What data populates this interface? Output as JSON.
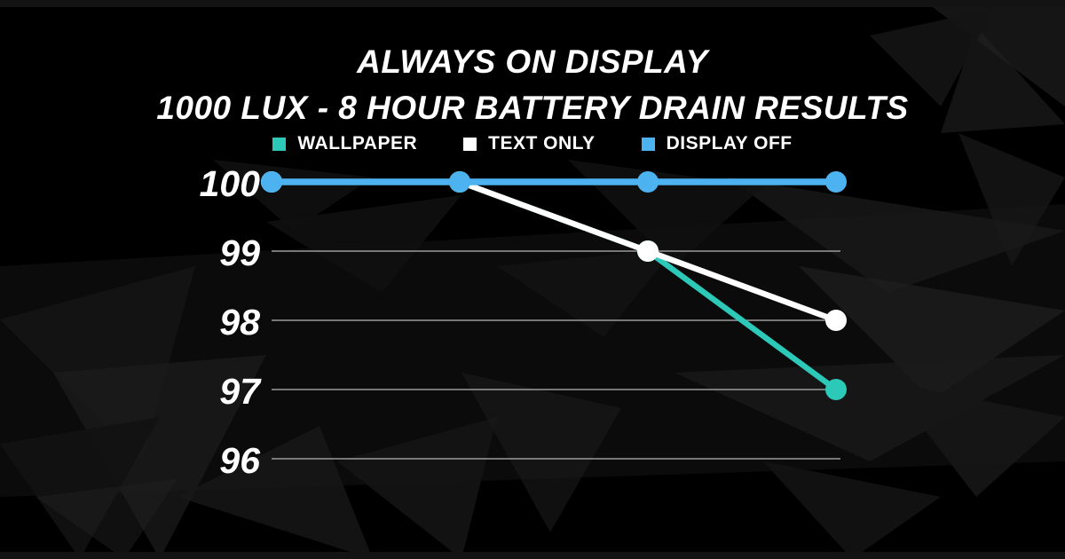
{
  "header": {
    "title": "ALWAYS ON DISPLAY",
    "subtitle": "1000 LUX - 8 HOUR BATTERY DRAIN RESULTS"
  },
  "chart_data": {
    "type": "line",
    "title": "ALWAYS ON DISPLAY",
    "subtitle": "1000 LUX - 8 HOUR BATTERY DRAIN RESULTS",
    "x_count": 4,
    "x_labels": [],
    "ylim": [
      96,
      100
    ],
    "y_ticks": [
      100,
      99,
      98,
      97,
      96
    ],
    "grid": true,
    "legend_position": "top",
    "series": [
      {
        "name": "WALLPAPER",
        "color": "#2cc8b8",
        "values": [
          100,
          100,
          99,
          97
        ]
      },
      {
        "name": "TEXT ONLY",
        "color": "#ffffff",
        "values": [
          100,
          100,
          99,
          98
        ]
      },
      {
        "name": "DISPLAY OFF",
        "color": "#4db3f0",
        "values": [
          100,
          100,
          100,
          100
        ]
      }
    ],
    "colors": {
      "background": "#000000",
      "gridline": "#9b9b9b",
      "tick_label": "#ffffff",
      "legend_text": "#ffffff"
    }
  }
}
